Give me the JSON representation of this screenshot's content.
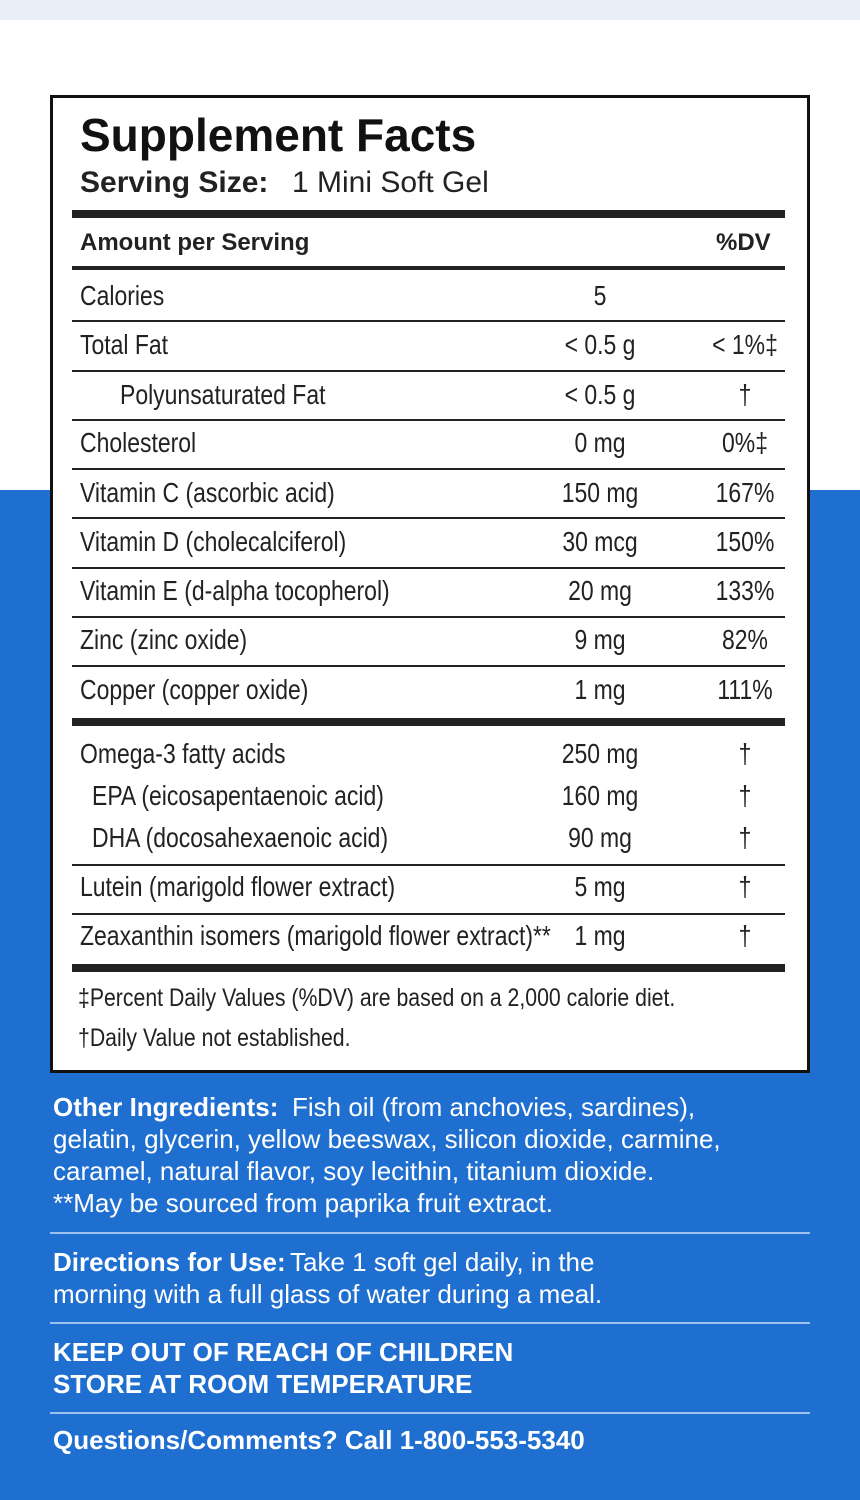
{
  "panel": {
    "title": "Supplement Facts",
    "serving_label": "Serving Size:",
    "serving_value": "1 Mini Soft Gel",
    "header_amount": "Amount per Serving",
    "header_dv": "%DV",
    "rows": [
      [
        "Calories",
        "5",
        null
      ],
      [
        "Total Fat",
        "< 0.5 g",
        "< 1%‡"
      ],
      [
        "Polyunsaturated Fat",
        "< 0.5 g",
        "†"
      ],
      [
        "Cholesterol",
        "0 mg",
        "0%‡"
      ],
      [
        "Vitamin C (ascorbic acid)",
        "150 mg",
        "167%"
      ],
      [
        "Vitamin D (cholecalciferol)",
        "30 mcg",
        "150%"
      ],
      [
        "Vitamin E (d-alpha tocopherol)",
        "20 mg",
        "133%"
      ],
      [
        "Zinc (zinc oxide)",
        "9 mg",
        "82%"
      ],
      [
        "Copper (copper oxide)",
        "1 mg",
        "111%"
      ],
      [
        "Omega-3 fatty acids",
        "250 mg",
        "†"
      ],
      [
        "EPA (eicosapentaenoic acid)",
        "160 mg",
        "†"
      ],
      [
        "DHA (docosahexaenoic acid)",
        "90 mg",
        "†"
      ],
      [
        "Lutein (marigold flower extract)",
        "5 mg",
        "†"
      ],
      [
        "Zeaxanthin isomers (marigold flower extract)**",
        "1 mg",
        "†"
      ]
    ],
    "footnotes": [
      "‡Percent Daily Values (%DV) are based on a 2,000 calorie diet.",
      "†Daily Value not established."
    ]
  },
  "other_ingredients": {
    "label": "Other Ingredients:",
    "lines": [
      "Fish oil (from anchovies, sardines),",
      "gelatin, glycerin, yellow beeswax, silicon dioxide, carmine,",
      "caramel, natural flavor, soy lecithin, titanium dioxide.",
      "**May be sourced from paprika fruit extract."
    ]
  },
  "directions": {
    "label": "Directions for Use:",
    "lines": [
      "Take 1 soft gel daily, in the",
      "morning with a full glass of water during a meal."
    ]
  },
  "warnings": [
    "KEEP OUT OF REACH OF CHILDREN",
    "STORE AT ROOM TEMPERATURE"
  ],
  "contact": "Questions/Comments? Call 1-800-553-5340"
}
